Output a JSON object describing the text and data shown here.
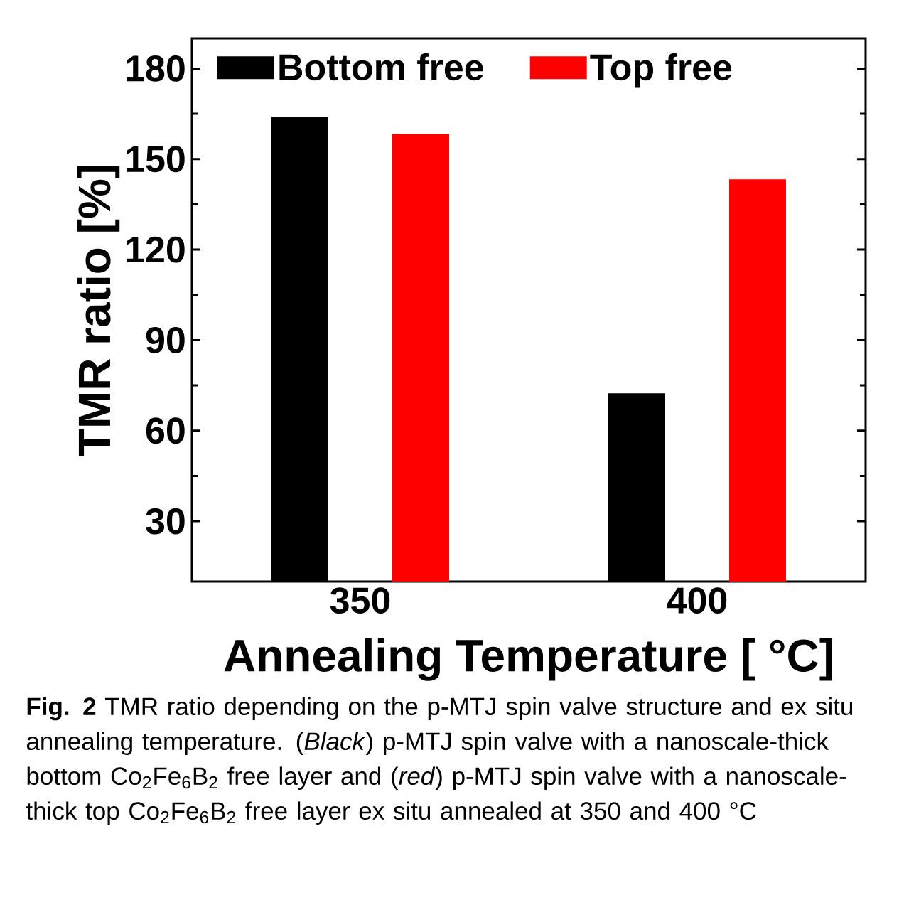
{
  "chart_data": {
    "type": "bar",
    "categories": [
      "350",
      "400"
    ],
    "series": [
      {
        "name": "Bottom free",
        "color": "#000000",
        "values": [
          164,
          72.4
        ]
      },
      {
        "name": "Top free",
        "color": "#ff0000",
        "values": [
          158.3,
          143.3
        ]
      }
    ],
    "ylim": [
      10,
      190
    ],
    "yticks": [
      30,
      60,
      90,
      120,
      150,
      180
    ],
    "xlabel": "Annealing Temperature [ °C]",
    "ylabel": "TMR ratio [%]",
    "legend": "top",
    "grid": false,
    "annotations": [
      "**Fig. 2** TMR ratio depending on the p-MTJ spin valve structure and ex situ annealing temperature. (*Black*) p-MTJ spin valve with a nanoscale-thick bottom Co$_{2}$Fe$_{6}$B$_{2}$ free layer and (*red*) p-MTJ spin valve with a nanoscale-thick top Co$_{2}$Fe$_{6}$B$_{2}$ free layer ex situ annealed at 350 and 400 °C"
    ]
  }
}
